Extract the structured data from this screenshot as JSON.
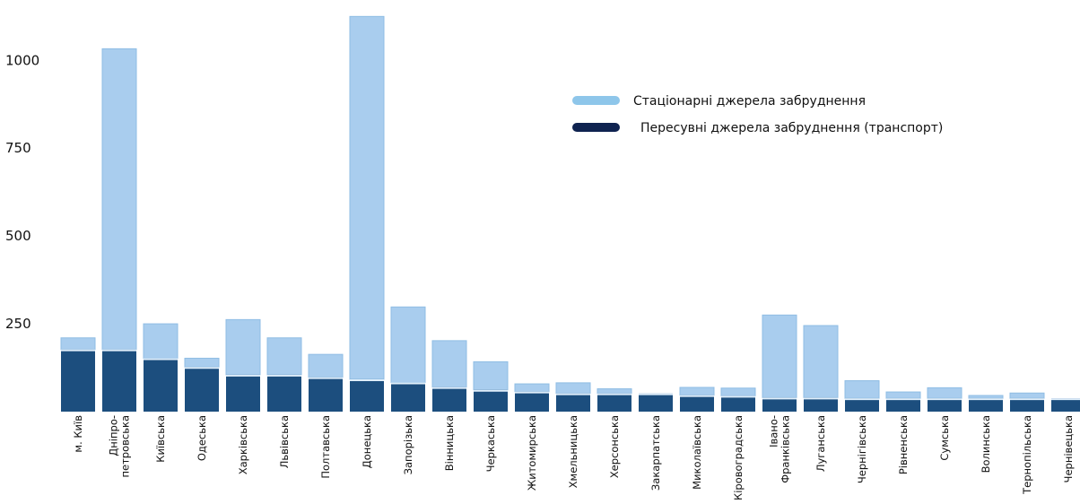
{
  "chart_data": {
    "type": "bar",
    "stacked": true,
    "title": "",
    "xlabel": "",
    "ylabel": "",
    "ylim": [
      0,
      1130
    ],
    "yticks": [
      250,
      500,
      750,
      1000
    ],
    "grid": false,
    "legend_position": "top-right",
    "categories": [
      [
        "м. Київ"
      ],
      [
        "Дніпро-",
        "петровська"
      ],
      [
        "Київська"
      ],
      [
        "Одеська"
      ],
      [
        "Харківська"
      ],
      [
        "Львівська"
      ],
      [
        "Полтавська"
      ],
      [
        "Донецька"
      ],
      [
        "Запорізька"
      ],
      [
        "Вінницька"
      ],
      [
        "Черкаська"
      ],
      [
        "Житомирська"
      ],
      [
        "Хмельницька"
      ],
      [
        "Херсонська"
      ],
      [
        "Закарпатська"
      ],
      [
        "Миколаївська"
      ],
      [
        "Кіровоградська"
      ],
      [
        "Івано-",
        "Франківська"
      ],
      [
        "Луганська"
      ],
      [
        "Чернігівська"
      ],
      [
        "Рівненська"
      ],
      [
        "Сумська"
      ],
      [
        "Волинська"
      ],
      [
        "Тернопільська"
      ],
      [
        "Чернівецька"
      ]
    ],
    "series": [
      {
        "name": "Пересувні джерела забруднення (транспорт)",
        "color": "#1c4e7e",
        "values": [
          177,
          177,
          152,
          127,
          105,
          105,
          98,
          92,
          83,
          70,
          62,
          57,
          52,
          52,
          52,
          47,
          45,
          40,
          40,
          38,
          38,
          38,
          38,
          38,
          38
        ]
      },
      {
        "name": "Стаціонарні джерела забруднення",
        "color": "#a9cdee",
        "values": [
          33,
          856,
          98,
          25,
          157,
          105,
          65,
          1033,
          215,
          132,
          80,
          22,
          30,
          13,
          0,
          22,
          22,
          235,
          205,
          50,
          18,
          30,
          8,
          15,
          0
        ]
      }
    ]
  }
}
